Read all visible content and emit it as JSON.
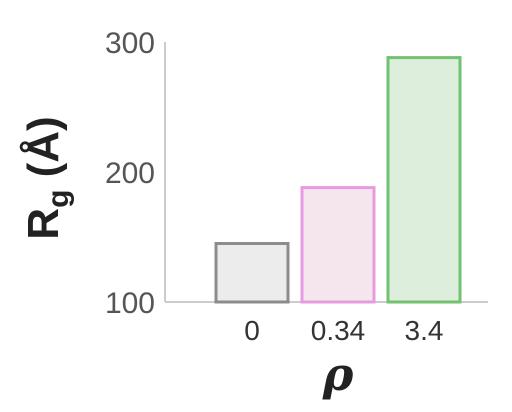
{
  "chart_data": {
    "type": "bar",
    "categories": [
      "0",
      "0.34",
      "3.4"
    ],
    "values": [
      145,
      188,
      288
    ],
    "ylim": [
      100,
      300
    ],
    "yticks": [
      "100",
      "200",
      "300"
    ],
    "ylabel": {
      "main": "R",
      "sub": "g",
      "unit": " (Å)"
    },
    "xlabel": "ρ",
    "grid": false,
    "legend": null,
    "colors": {
      "fills": [
        "#ececec",
        "#f4e6ec",
        "#ddeedd"
      ],
      "edges": [
        "#8c8c8c",
        "#e89ae0",
        "#72c272"
      ],
      "axis": "#cccccc"
    }
  }
}
